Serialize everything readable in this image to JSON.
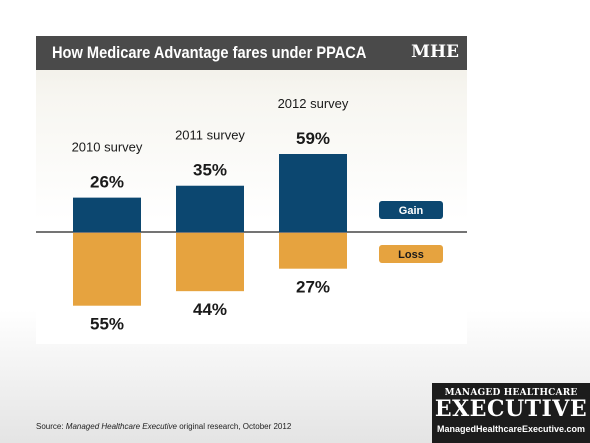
{
  "header": {
    "title": "How Medicare Advantage fares under PPACA",
    "logo": "MHE"
  },
  "colors": {
    "gain": "#0c4770",
    "loss": "#e6a33f",
    "title_bar": "#4a4a4a"
  },
  "chart_data": {
    "type": "bar",
    "categories": [
      "2010 survey",
      "2011 survey",
      "2012 survey"
    ],
    "series": [
      {
        "name": "Gain",
        "values": [
          26,
          35,
          59
        ]
      },
      {
        "name": "Loss",
        "values": [
          -55,
          -44,
          -27
        ]
      }
    ],
    "value_labels": {
      "gain": [
        "26%",
        "35%",
        "59%"
      ],
      "loss": [
        "55%",
        "44%",
        "27%"
      ]
    },
    "legend": [
      "Gain",
      "Loss"
    ],
    "legend_position": "right",
    "title": "How Medicare Advantage fares under PPACA",
    "xlabel": "",
    "ylabel": "",
    "unit": "%",
    "grid": false
  },
  "footer": {
    "source_prefix": "Source: ",
    "source_publication": "Managed Healthcare Executive",
    "source_suffix": " original research, October 2012",
    "brand_top": "MANAGED HEALTHCARE",
    "brand_main": "EXECUTIVE",
    "brand_url": "ManagedHealthcareExecutive.com"
  }
}
